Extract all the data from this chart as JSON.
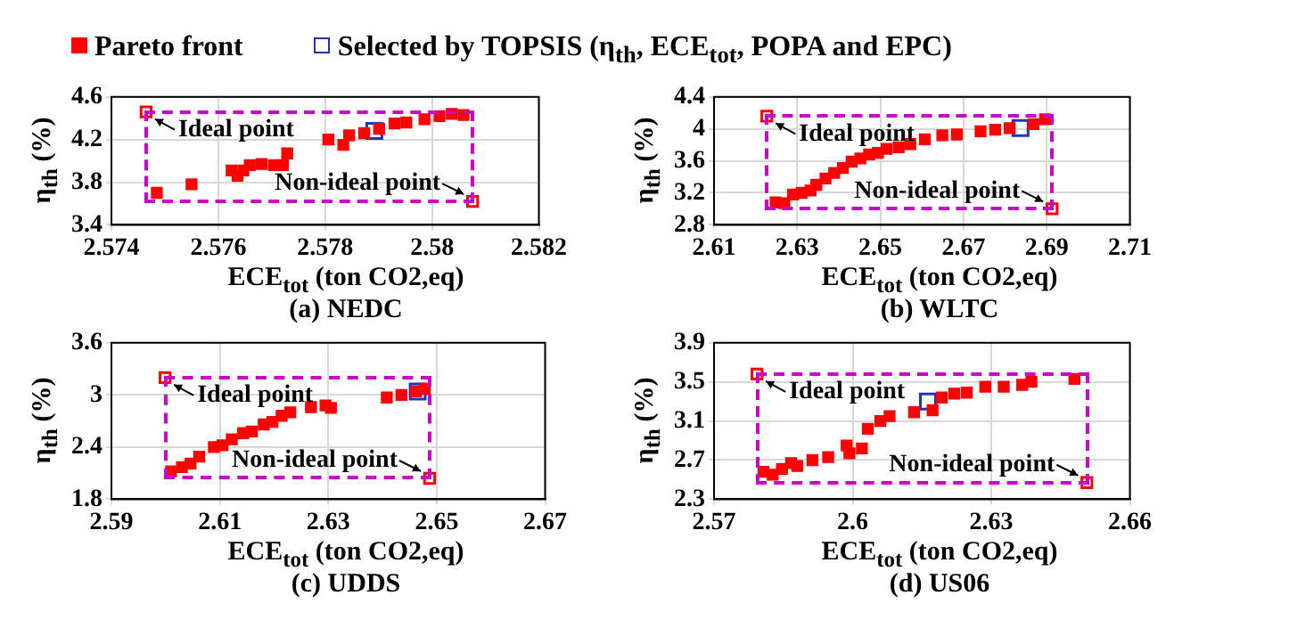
{
  "chart_data": [
    {
      "type": "scatter",
      "title": "(a) NEDC",
      "xlabel": "ECE$_{tot}$ (ton CO2,eq)",
      "ylabel": "η$_{th}$ (%)",
      "marker": "square",
      "grid": true,
      "legend": "top",
      "xlim": [
        2.574,
        2.582
      ],
      "xticks": [
        2.574,
        2.576,
        2.578,
        2.58,
        2.582
      ],
      "ylim": [
        3.4,
        4.6
      ],
      "yticks": [
        3.4,
        3.8,
        4.2,
        4.6
      ],
      "series": [
        {
          "name": "Pareto front",
          "type": "scatter",
          "color": "#ff0000",
          "x": [
            2.57485,
            2.5755,
            2.57625,
            2.57636,
            2.57647,
            2.57659,
            2.57681,
            2.57704,
            2.57721,
            2.57729,
            2.57806,
            2.57834,
            2.57845,
            2.57873,
            2.57901,
            2.5793,
            2.57952,
            2.57986,
            2.58014,
            2.58037,
            2.58059
          ],
          "values": [
            3.7,
            3.78,
            3.91,
            3.86,
            3.91,
            3.96,
            3.97,
            3.96,
            3.96,
            4.07,
            4.2,
            4.15,
            4.24,
            4.26,
            4.3,
            4.35,
            4.36,
            4.39,
            4.42,
            4.44,
            4.43
          ]
        },
        {
          "name": "Selected by TOPSIS (η$_{th}$, ECE$_{tot}$, POPA and EPC)",
          "type": "scatter",
          "color": "#2233bb",
          "x": [
            2.57892
          ],
          "values": [
            4.28
          ]
        },
        {
          "type": "scatter",
          "color": "#ff0000",
          "x": [
            2.57465,
            2.58076
          ],
          "values": [
            4.46,
            3.62
          ]
        }
      ],
      "annotations": [
        {
          "text": "Ideal point",
          "x": 2.57465,
          "y": 4.46
        },
        {
          "text": "Non-ideal point",
          "x": 2.58076,
          "y": 3.62
        }
      ]
    },
    {
      "type": "scatter",
      "title": "(b) WLTC",
      "xlabel": "ECE$_{tot}$ (ton CO2,eq)",
      "ylabel": "η$_{th}$ (%)",
      "marker": "square",
      "grid": true,
      "xlim": [
        2.61,
        2.71
      ],
      "xticks": [
        2.61,
        2.63,
        2.65,
        2.67,
        2.69,
        2.71
      ],
      "ylim": [
        2.8,
        4.4
      ],
      "yticks": [
        2.8,
        3.2,
        3.6,
        4,
        4.4
      ],
      "series": [
        {
          "type": "scatter",
          "color": "#ff0000",
          "x": [
            2.6248,
            2.6269,
            2.629,
            2.6311,
            2.6332,
            2.6346,
            2.6368,
            2.6389,
            2.641,
            2.6431,
            2.6452,
            2.6473,
            2.6494,
            2.6515,
            2.6544,
            2.6572,
            2.6607,
            2.6649,
            2.6684,
            2.6741,
            2.6776,
            2.6811,
            2.6868,
            2.6896
          ],
          "values": [
            3.08,
            3.07,
            3.18,
            3.2,
            3.23,
            3.3,
            3.38,
            3.45,
            3.51,
            3.59,
            3.63,
            3.68,
            3.7,
            3.75,
            3.77,
            3.81,
            3.87,
            3.92,
            3.93,
            3.97,
            3.99,
            4.01,
            4.06,
            4.12
          ]
        },
        {
          "type": "scatter",
          "color": "#2233bb",
          "x": [
            2.6837
          ],
          "values": [
            4.01
          ]
        },
        {
          "type": "scatter",
          "color": "#ff0000",
          "x": [
            2.6227,
            2.6913
          ],
          "values": [
            4.16,
            3.0
          ]
        }
      ],
      "annotations": [
        {
          "text": "Ideal point",
          "x": 2.6227,
          "y": 4.16
        },
        {
          "text": "Non-ideal point",
          "x": 2.6913,
          "y": 3.0
        }
      ]
    },
    {
      "type": "scatter",
      "title": "(c) UDDS",
      "xlabel": "ECE$_{tot}$ (ton CO2,eq)",
      "ylabel": "η$_{th}$ (%)",
      "marker": "square",
      "grid": true,
      "xlim": [
        2.59,
        2.67
      ],
      "xticks": [
        2.59,
        2.61,
        2.63,
        2.65,
        2.67
      ],
      "ylim": [
        1.8,
        3.6
      ],
      "yticks": [
        1.8,
        2.4,
        3,
        3.6
      ],
      "series": [
        {
          "type": "scatter",
          "color": "#ff0000",
          "x": [
            2.601,
            2.603,
            2.6046,
            2.6062,
            2.6089,
            2.6105,
            2.6122,
            2.6143,
            2.6159,
            2.6181,
            2.6197,
            2.6214,
            2.623,
            2.6268,
            2.6295,
            2.6305,
            2.6408,
            2.6435,
            2.6462,
            2.6478
          ],
          "values": [
            2.12,
            2.17,
            2.21,
            2.29,
            2.4,
            2.42,
            2.49,
            2.56,
            2.58,
            2.66,
            2.69,
            2.76,
            2.8,
            2.86,
            2.88,
            2.85,
            2.97,
            3.0,
            3.04,
            3.07
          ]
        },
        {
          "type": "scatter",
          "color": "#2233bb",
          "x": [
            2.6465
          ],
          "values": [
            3.04
          ]
        },
        {
          "type": "scatter",
          "color": "#ff0000",
          "x": [
            2.5999,
            2.6487
          ],
          "values": [
            3.2,
            2.04
          ]
        }
      ],
      "annotations": [
        {
          "text": "Ideal point",
          "x": 2.5999,
          "y": 3.2
        },
        {
          "text": "Non-ideal point",
          "x": 2.6487,
          "y": 2.04
        }
      ]
    },
    {
      "type": "scatter",
      "title": "(d) US06",
      "xlabel": "ECE$_{tot}$ (ton CO2,eq)",
      "ylabel": "η$_{th}$ (%)",
      "marker": "square",
      "grid": true,
      "xlim": [
        2.57,
        2.66
      ],
      "xticks": [
        2.57,
        2.6,
        2.63,
        2.66
      ],
      "ylim": [
        2.3,
        3.9
      ],
      "yticks": [
        2.3,
        2.7,
        3.1,
        3.5,
        3.9
      ],
      "series": [
        {
          "type": "scatter",
          "color": "#ff0000",
          "x": [
            2.5807,
            2.5827,
            2.5847,
            2.5867,
            2.588,
            2.5913,
            2.5947,
            2.5987,
            2.5993,
            2.602,
            2.6033,
            2.606,
            2.608,
            2.6133,
            2.6173,
            2.6193,
            2.622,
            2.6247,
            2.6287,
            2.6327,
            2.6367,
            2.6387,
            2.648
          ],
          "values": [
            2.58,
            2.55,
            2.61,
            2.67,
            2.64,
            2.7,
            2.73,
            2.85,
            2.77,
            2.82,
            3.02,
            3.1,
            3.15,
            3.19,
            3.21,
            3.34,
            3.38,
            3.39,
            3.45,
            3.45,
            3.47,
            3.5,
            3.53
          ]
        },
        {
          "type": "scatter",
          "color": "#2233bb",
          "x": [
            2.6163
          ],
          "values": [
            3.3
          ]
        },
        {
          "type": "scatter",
          "color": "#ff0000",
          "x": [
            2.5793,
            2.6507
          ],
          "values": [
            3.58,
            2.47
          ]
        }
      ],
      "annotations": [
        {
          "text": "Ideal point",
          "x": 2.5793,
          "y": 3.58
        },
        {
          "text": "Non-ideal point",
          "x": 2.6507,
          "y": 2.47
        }
      ]
    }
  ]
}
